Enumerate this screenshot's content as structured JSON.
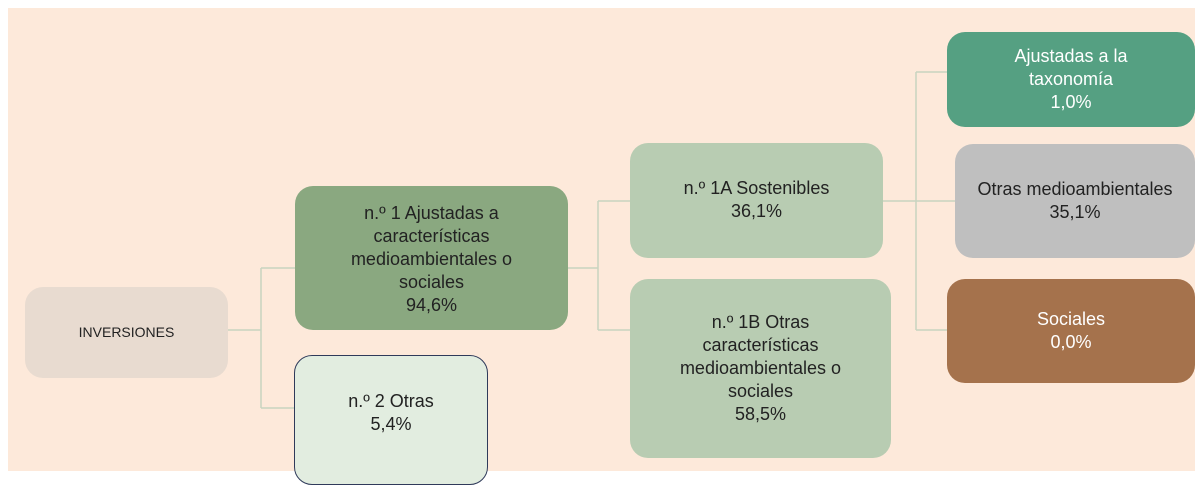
{
  "nodes": [
    {
      "label": "INVERSIONES"
    },
    {
      "label": "n.º 1 Ajustadas a características medioambientales o sociales",
      "value": "94,6%"
    },
    {
      "label": "n.º 2 Otras",
      "value": "5,4%"
    },
    {
      "label": "n.º 1A Sostenibles",
      "value": "36,1%"
    },
    {
      "label": "n.º 1B Otras características medioambientales o sociales",
      "value": "58,5%"
    },
    {
      "label": "Ajustadas a la taxonomía",
      "value": "1,0%"
    },
    {
      "label": "Otras medioambientales",
      "value": "35,1%"
    },
    {
      "label": "Sociales",
      "value": "0,0%"
    }
  ]
}
